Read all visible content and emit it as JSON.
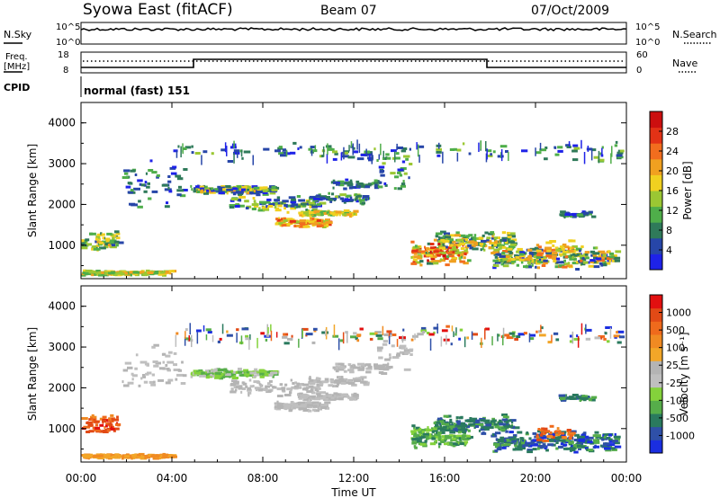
{
  "header": {
    "station": "Syowa East (fitACF)",
    "beam": "Beam 07",
    "date": "07/Oct/2009"
  },
  "top_panel": {
    "left_label": "N.Sky",
    "right_label": "N.Search",
    "left_ticks": [
      "10^5",
      "10^0"
    ],
    "right_ticks": [
      "10^5",
      "10^0"
    ]
  },
  "freq_panel": {
    "left_label_line1": "Freq.",
    "left_label_line2": "[MHz]",
    "right_label": "Nave",
    "left_ticks": [
      "18",
      "8"
    ],
    "right_ticks": [
      "60",
      "0"
    ]
  },
  "cpid": {
    "label": "CPID",
    "mode": "normal (fast) 151"
  },
  "chart_data": [
    {
      "type": "heatmap",
      "name": "power",
      "ylabel": "Slant Range [km]",
      "ylim": [
        180,
        4500
      ],
      "yticks": [
        "1000",
        "2000",
        "3000",
        "4000"
      ],
      "xlim": [
        0,
        24
      ],
      "colorbar": {
        "label": "Power [dB]",
        "ticks": [
          "4",
          "8",
          "12",
          "16",
          "20",
          "24",
          "28"
        ],
        "colors": [
          "#1e22e8",
          "#2746a8",
          "#2f7a5a",
          "#4fae4a",
          "#9bc733",
          "#f0d020",
          "#f0a020",
          "#f26d1e",
          "#e33216",
          "#cc0f0f"
        ]
      }
    },
    {
      "type": "heatmap",
      "name": "velocity",
      "ylabel": "Slant Range [km]",
      "ylim": [
        180,
        4500
      ],
      "yticks": [
        "1000",
        "2000",
        "3000",
        "4000"
      ],
      "xlim": [
        0,
        24
      ],
      "xticks": [
        "00:00",
        "04:00",
        "08:00",
        "12:00",
        "16:00",
        "20:00",
        "00:00"
      ],
      "xlabel": "Time UT",
      "colorbar": {
        "label": "Velocity [m s⁻¹]",
        "ticks": [
          "1000",
          "500",
          "100",
          "25",
          "-25",
          "-100",
          "-500",
          "-1000"
        ],
        "colors": [
          "#1a2ee0",
          "#2f50a8",
          "#2a7a5e",
          "#56ad4a",
          "#84d23b",
          "#bfbfbf",
          "#b4b4b4",
          "#f2a628",
          "#f08a22",
          "#ef6a1c",
          "#e24a16",
          "#e21010"
        ]
      }
    }
  ]
}
